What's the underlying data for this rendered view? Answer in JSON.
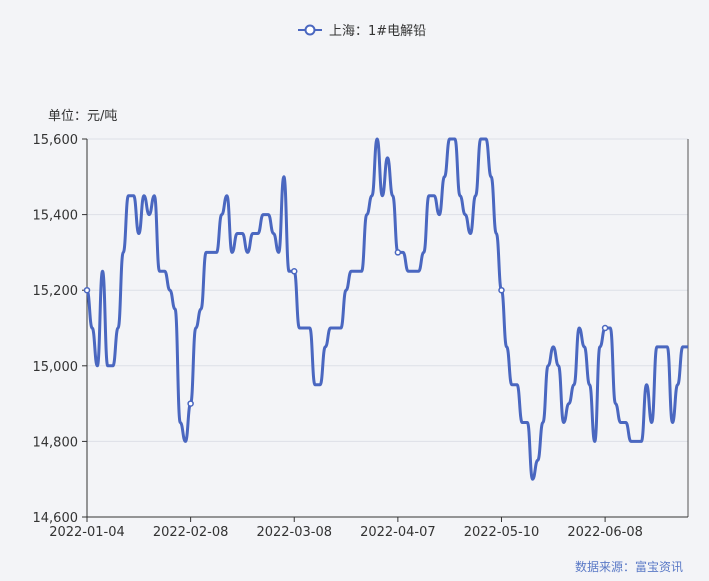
{
  "chart_data": {
    "type": "line",
    "legend": {
      "series_name": "上海：1#电解铅",
      "placement": "top-center"
    },
    "unit_label": "单位：元/吨",
    "source": "数据来源：富宝资讯",
    "color": "#4a67c0",
    "ylim": [
      14600,
      15600
    ],
    "yticks": [
      14600,
      14800,
      15000,
      15200,
      15400,
      15600
    ],
    "ytick_labels": [
      "14,600",
      "14,800",
      "15,000",
      "15,200",
      "15,400",
      "15,600"
    ],
    "xtick_labels": [
      "2022-01-04",
      "2022-02-08",
      "2022-03-08",
      "2022-04-07",
      "2022-05-10",
      "2022-06-08"
    ],
    "xtick_index": [
      0,
      20,
      40,
      60,
      80,
      100
    ],
    "grid": true,
    "series": [
      {
        "name": "上海：1#电解铅",
        "values": [
          15200,
          15100,
          15000,
          15250,
          15000,
          15000,
          15100,
          15300,
          15450,
          15450,
          15350,
          15450,
          15400,
          15450,
          15250,
          15250,
          15200,
          15150,
          14850,
          14800,
          14900,
          15100,
          15150,
          15300,
          15300,
          15300,
          15400,
          15450,
          15300,
          15350,
          15350,
          15300,
          15350,
          15350,
          15400,
          15400,
          15350,
          15300,
          15500,
          15250,
          15250,
          15100,
          15100,
          15100,
          14950,
          14950,
          15050,
          15100,
          15100,
          15100,
          15200,
          15250,
          15250,
          15250,
          15400,
          15450,
          15600,
          15450,
          15550,
          15450,
          15300,
          15300,
          15250,
          15250,
          15250,
          15300,
          15450,
          15450,
          15400,
          15500,
          15600,
          15600,
          15450,
          15400,
          15350,
          15450,
          15600,
          15600,
          15500,
          15350,
          15200,
          15050,
          14950,
          14950,
          14850,
          14850,
          14700,
          14750,
          14850,
          15000,
          15050,
          15000,
          14850,
          14900,
          14950,
          15100,
          15050,
          14950,
          14800,
          15050,
          15100,
          15100,
          14900,
          14850,
          14850,
          14800,
          14800,
          14800,
          14950,
          14850,
          15050,
          15050,
          15050,
          14850,
          14950,
          15050,
          15050
        ]
      }
    ],
    "highlight_index": [
      0,
      20,
      40,
      60,
      80,
      100
    ]
  }
}
